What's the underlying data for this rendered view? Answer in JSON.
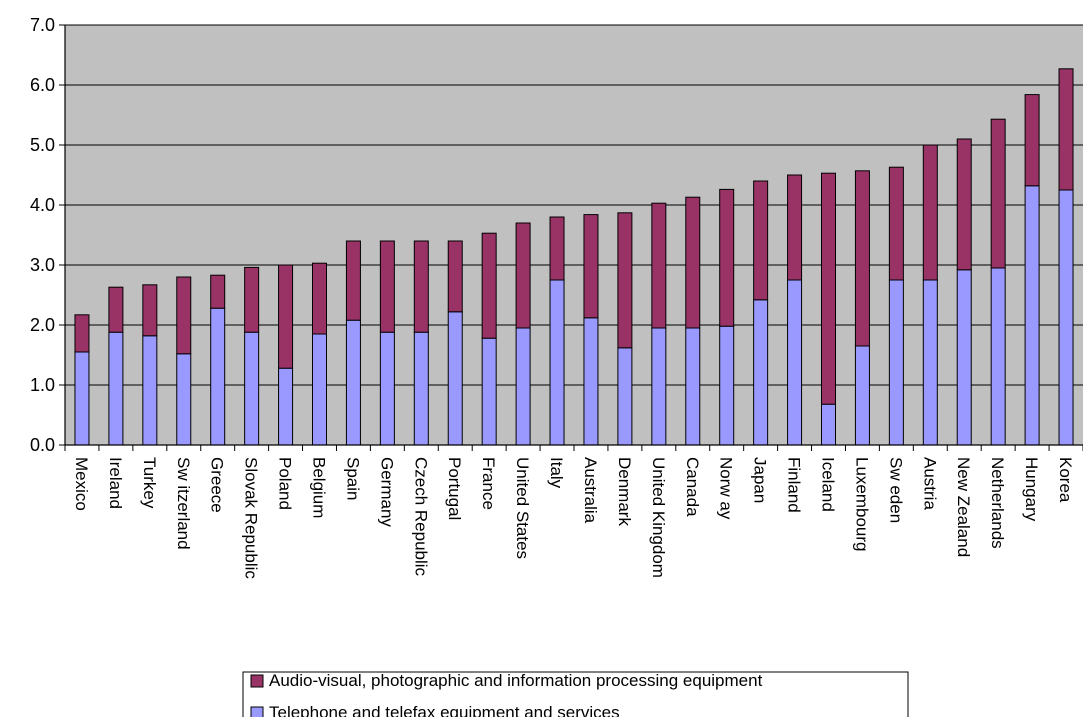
{
  "chart_data": {
    "type": "bar",
    "stacked": true,
    "title": "",
    "xlabel": "",
    "ylabel": "",
    "ylim": [
      0,
      7
    ],
    "yticks": [
      "0.0",
      "1.0",
      "2.0",
      "3.0",
      "4.0",
      "5.0",
      "6.0",
      "7.0"
    ],
    "grid": "horizontal",
    "legend_position": "bottom",
    "plot_background": "#c0c0c0",
    "categories": [
      "Mexico",
      "Ireland",
      "Turkey",
      "Sw itzerland",
      "Greece",
      "Slovak Republic",
      "Poland",
      "Belgium",
      "Spain",
      "Germany",
      "Czech Republic",
      "Portugal",
      "France",
      "United States",
      "Italy",
      "Australia",
      "Denmark",
      "United Kingdom",
      "Canada",
      "Norw ay",
      "Japan",
      "Finland",
      "Iceland",
      "Luxembourg",
      "Sw eden",
      "Austria",
      "New Zealand",
      "Netherlands",
      "Hungary",
      "Korea"
    ],
    "series": [
      {
        "name": "Telephone and telefax equipment and services",
        "color": "#9999ff",
        "values": [
          1.55,
          1.88,
          1.82,
          1.52,
          2.28,
          1.88,
          1.28,
          1.85,
          2.08,
          1.88,
          1.88,
          2.22,
          1.78,
          1.95,
          2.75,
          2.12,
          1.62,
          1.95,
          1.95,
          1.98,
          2.42,
          2.75,
          0.68,
          1.65,
          2.75,
          2.75,
          2.92,
          2.95,
          4.32,
          4.25
        ]
      },
      {
        "name": "Audio-visual, photographic and information processing equipment",
        "color": "#993366",
        "values": [
          0.62,
          0.75,
          0.85,
          1.28,
          0.55,
          1.08,
          1.72,
          1.18,
          1.32,
          1.52,
          1.52,
          1.18,
          1.75,
          1.75,
          1.05,
          1.72,
          2.25,
          2.08,
          2.18,
          2.28,
          1.98,
          1.75,
          3.85,
          2.92,
          1.88,
          2.25,
          2.18,
          2.48,
          1.52,
          2.02
        ]
      }
    ]
  }
}
